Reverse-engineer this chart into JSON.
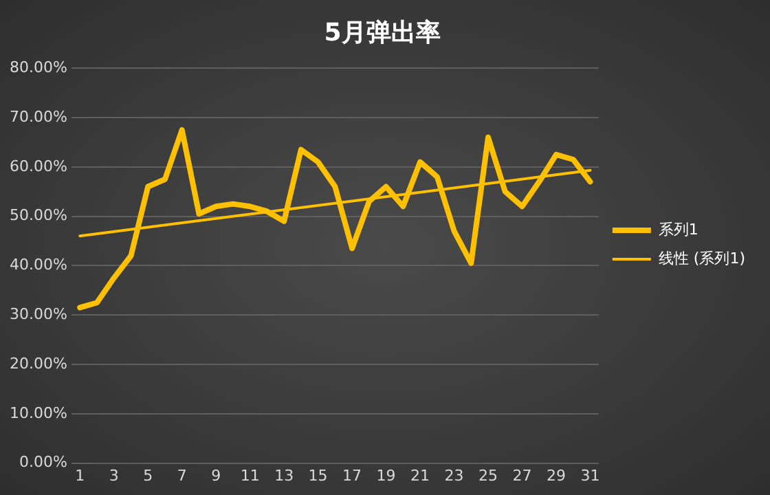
{
  "chart_data": {
    "type": "line",
    "title": "5月弹出率",
    "x": [
      1,
      2,
      3,
      4,
      5,
      6,
      7,
      8,
      9,
      10,
      11,
      12,
      13,
      14,
      15,
      16,
      17,
      18,
      19,
      20,
      21,
      22,
      23,
      24,
      25,
      26,
      27,
      28,
      29,
      30,
      31
    ],
    "xlim": [
      0.5,
      31.5
    ],
    "xticks": [
      1,
      3,
      5,
      7,
      9,
      11,
      13,
      15,
      17,
      19,
      21,
      23,
      25,
      27,
      29,
      31
    ],
    "ylim": [
      0,
      80
    ],
    "yticks": [
      {
        "value": 0,
        "label": "0.00%"
      },
      {
        "value": 10,
        "label": "10.00%"
      },
      {
        "value": 20,
        "label": "20.00%"
      },
      {
        "value": 30,
        "label": "30.00%"
      },
      {
        "value": 40,
        "label": "40.00%"
      },
      {
        "value": 50,
        "label": "50.00%"
      },
      {
        "value": 60,
        "label": "60.00%"
      },
      {
        "value": 70,
        "label": "70.00%"
      },
      {
        "value": 80,
        "label": "80.00%"
      }
    ],
    "grid": "y",
    "legend": "right",
    "marker": "none",
    "series": [
      {
        "name": "系列1",
        "color": "#ffc000",
        "values": [
          31.5,
          32.5,
          37.5,
          42,
          56,
          57.5,
          67.5,
          50.5,
          52,
          52.5,
          52,
          51,
          49,
          63.5,
          61,
          56,
          43.5,
          53,
          56,
          52,
          61,
          58,
          47,
          40.5,
          66,
          55,
          52,
          57,
          62.5,
          61.5,
          57
        ]
      },
      {
        "name": "线性 (系列1)",
        "color": "#ffc000",
        "x": [
          1,
          31
        ],
        "values": [
          46,
          59.3
        ]
      }
    ]
  }
}
